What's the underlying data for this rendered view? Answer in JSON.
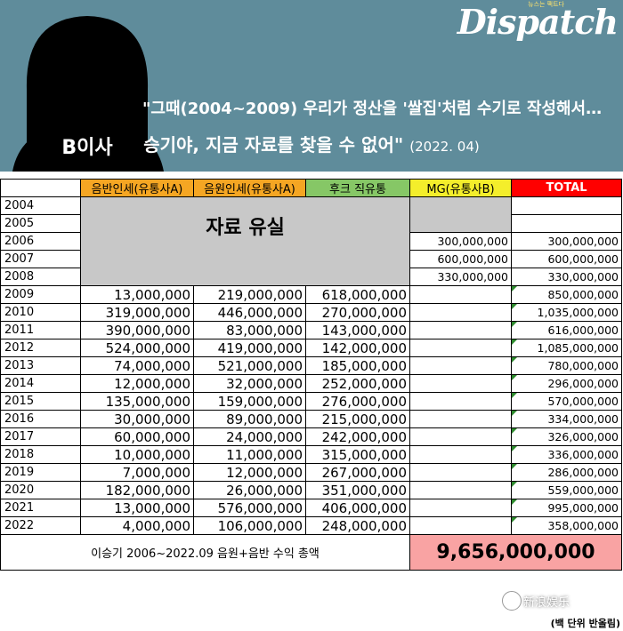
{
  "header": {
    "logo": "Dispatch",
    "logo_tag": "뉴스는 팩트다",
    "person_label": "B이사",
    "quote_line1": "\"그때(2004~2009) 우리가 정산을 '쌀집'처럼 수기로 작성해서…",
    "quote_line2": "승기야, 지금 자료를 찾을 수 없어\"",
    "quote_date": "(2022. 04)",
    "bg_color": "#5f8c9b"
  },
  "table": {
    "headers": [
      "음반인세(유통사A)",
      "음원인세(유통사A)",
      "후크 직유통",
      "MG(유통사B)",
      "TOTAL"
    ],
    "lost_label": "자료 유실",
    "rows": [
      {
        "year": "2004",
        "a": "",
        "b": "",
        "c": "",
        "mg": "",
        "total": ""
      },
      {
        "year": "2005",
        "a": "",
        "b": "",
        "c": "",
        "mg": "",
        "total": ""
      },
      {
        "year": "2006",
        "a": "",
        "b": "",
        "c": "",
        "mg": "300,000,000",
        "total": "300,000,000"
      },
      {
        "year": "2007",
        "a": "",
        "b": "",
        "c": "",
        "mg": "600,000,000",
        "total": "600,000,000"
      },
      {
        "year": "2008",
        "a": "",
        "b": "",
        "c": "",
        "mg": "330,000,000",
        "total": "330,000,000"
      },
      {
        "year": "2009",
        "a": "13,000,000",
        "b": "219,000,000",
        "c": "618,000,000",
        "mg": "",
        "total": "850,000,000"
      },
      {
        "year": "2010",
        "a": "319,000,000",
        "b": "446,000,000",
        "c": "270,000,000",
        "mg": "",
        "total": "1,035,000,000"
      },
      {
        "year": "2011",
        "a": "390,000,000",
        "b": "83,000,000",
        "c": "143,000,000",
        "mg": "",
        "total": "616,000,000"
      },
      {
        "year": "2012",
        "a": "524,000,000",
        "b": "419,000,000",
        "c": "142,000,000",
        "mg": "",
        "total": "1,085,000,000"
      },
      {
        "year": "2013",
        "a": "74,000,000",
        "b": "521,000,000",
        "c": "185,000,000",
        "mg": "",
        "total": "780,000,000"
      },
      {
        "year": "2014",
        "a": "12,000,000",
        "b": "32,000,000",
        "c": "252,000,000",
        "mg": "",
        "total": "296,000,000"
      },
      {
        "year": "2015",
        "a": "135,000,000",
        "b": "159,000,000",
        "c": "276,000,000",
        "mg": "",
        "total": "570,000,000"
      },
      {
        "year": "2016",
        "a": "30,000,000",
        "b": "89,000,000",
        "c": "215,000,000",
        "mg": "",
        "total": "334,000,000"
      },
      {
        "year": "2017",
        "a": "60,000,000",
        "b": "24,000,000",
        "c": "242,000,000",
        "mg": "",
        "total": "326,000,000"
      },
      {
        "year": "2018",
        "a": "10,000,000",
        "b": "11,000,000",
        "c": "315,000,000",
        "mg": "",
        "total": "336,000,000"
      },
      {
        "year": "2019",
        "a": "7,000,000",
        "b": "12,000,000",
        "c": "267,000,000",
        "mg": "",
        "total": "286,000,000"
      },
      {
        "year": "2020",
        "a": "182,000,000",
        "b": "26,000,000",
        "c": "351,000,000",
        "mg": "",
        "total": "559,000,000"
      },
      {
        "year": "2021",
        "a": "13,000,000",
        "b": "576,000,000",
        "c": "406,000,000",
        "mg": "",
        "total": "995,000,000"
      },
      {
        "year": "2022",
        "a": "4,000,000",
        "b": "106,000,000",
        "c": "248,000,000",
        "mg": "",
        "total": "358,000,000"
      }
    ],
    "total_label": "이승기 2006~2022.09 음원+음반 수익 총액",
    "total_value": "9,656,000,000",
    "footnote": "(백 단위 반올림)",
    "colors": {
      "orange": "#f5a623",
      "green": "#86c766",
      "yellow": "#f4ee2b",
      "red": "#ff0000",
      "pink": "#f9a3a3",
      "lost_gray": "#c8c8c8"
    }
  },
  "watermark": "新浪娱乐"
}
